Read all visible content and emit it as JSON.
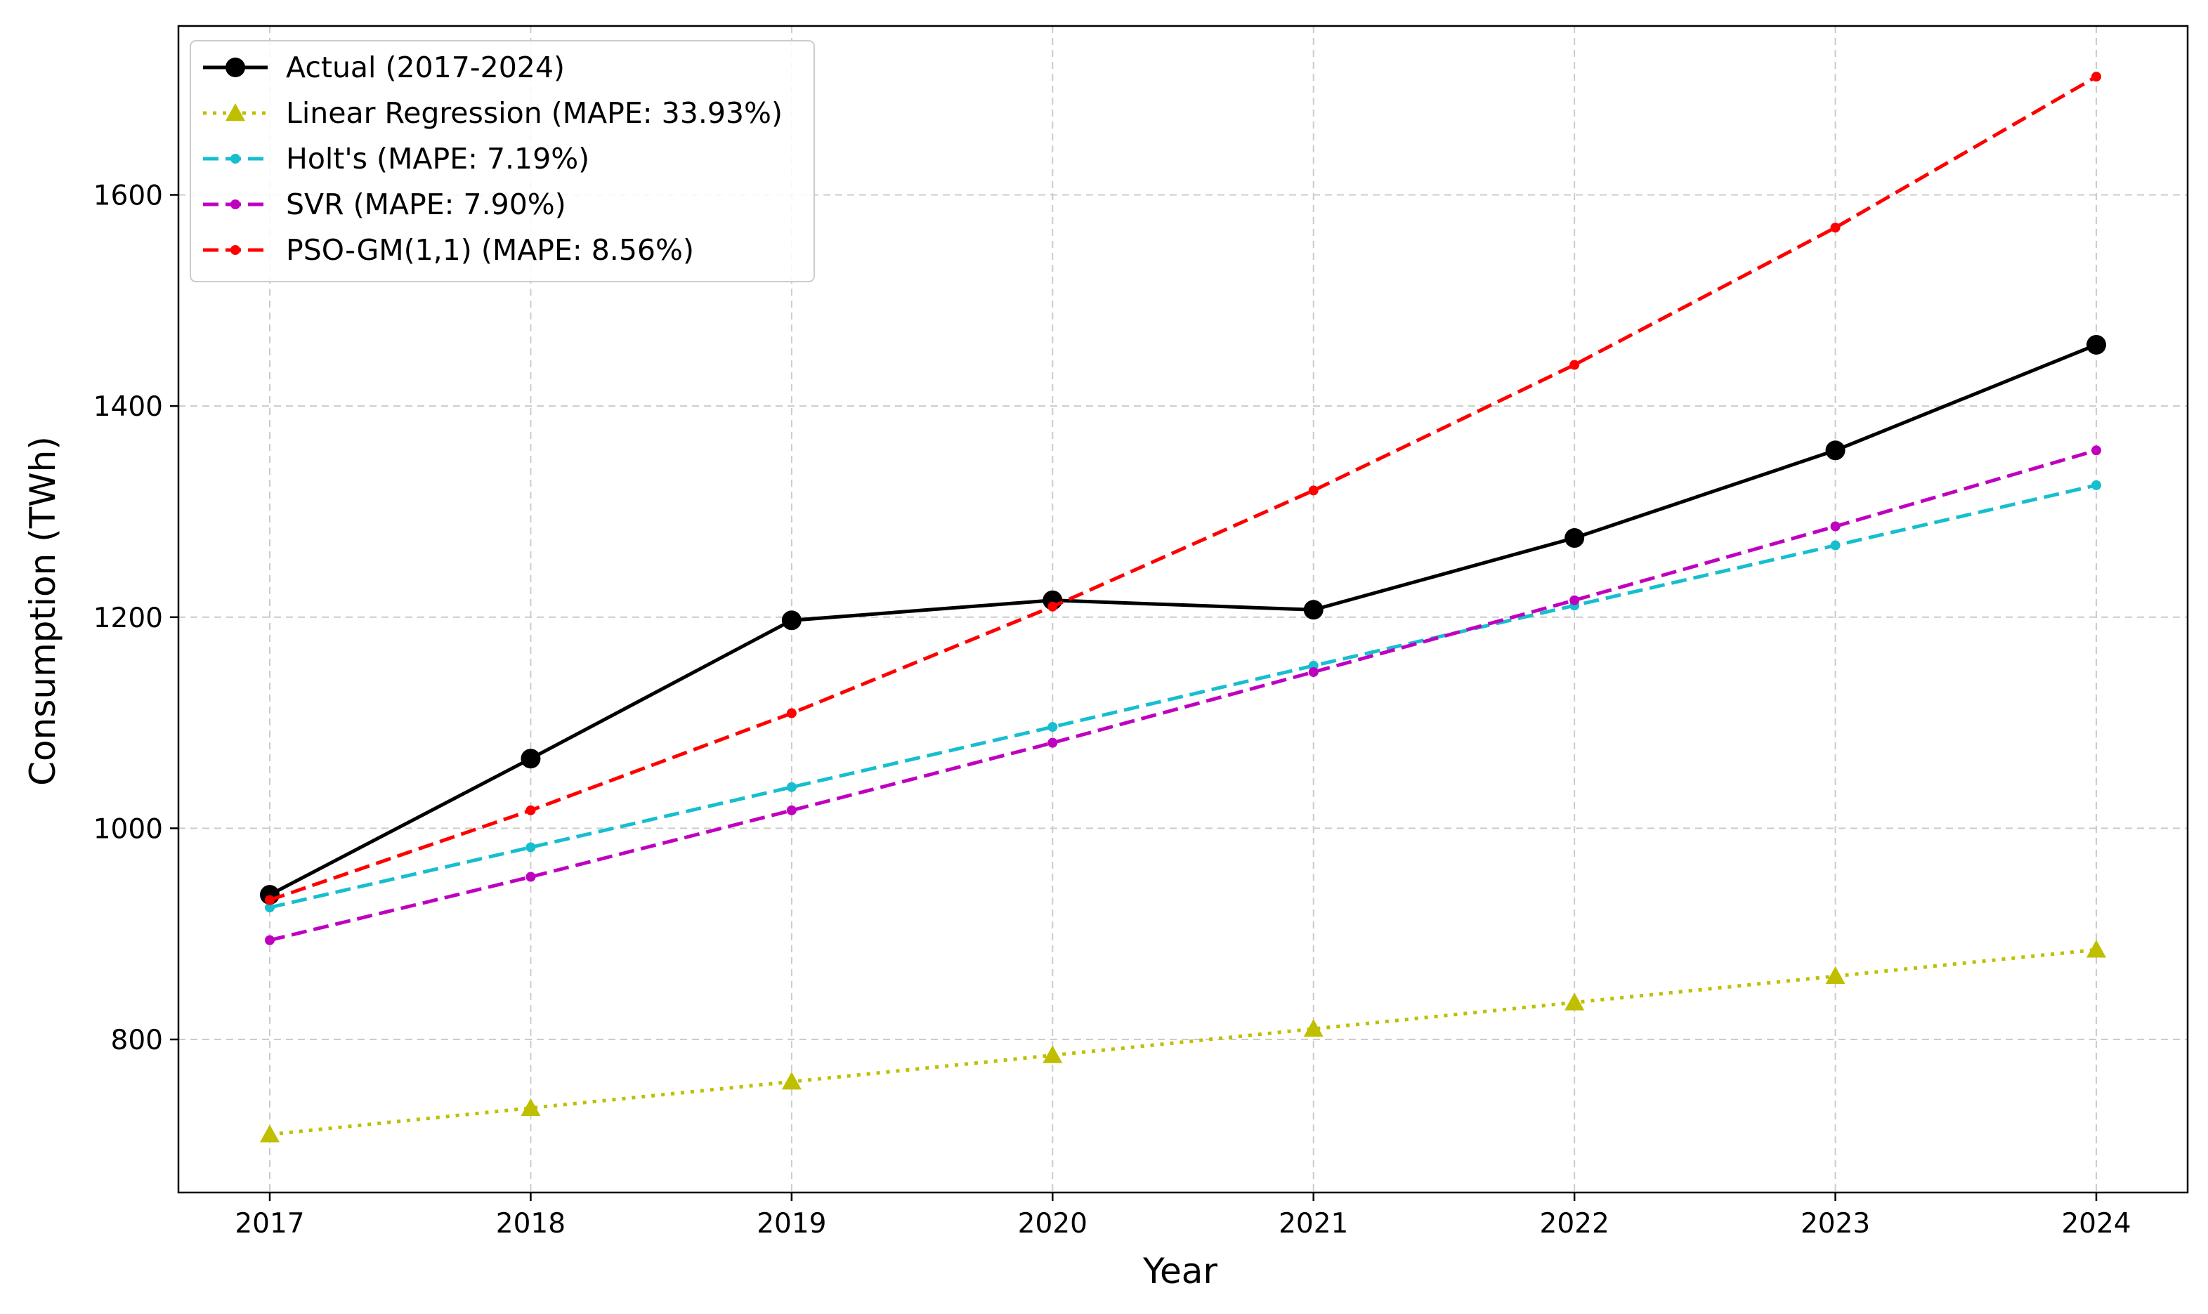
{
  "chart_data": {
    "type": "line",
    "title": "",
    "xlabel": "Year",
    "ylabel": "Consumption (TWh)",
    "x": [
      2017,
      2018,
      2019,
      2020,
      2021,
      2022,
      2023,
      2024
    ],
    "xlim": [
      2016.65,
      2024.35
    ],
    "ylim": [
      655,
      1760
    ],
    "yticks": [
      800,
      1000,
      1200,
      1400,
      1600
    ],
    "grid": true,
    "legend_position": "top-left",
    "series": [
      {
        "name": "Actual (2017-2024)",
        "color": "#000000",
        "dash": "solid",
        "marker": "circle",
        "values": [
          937,
          1066,
          1197,
          1216,
          1207,
          1275,
          1358,
          1458
        ]
      },
      {
        "name": "Linear Regression (MAPE: 33.93%)",
        "color": "#bfbf00",
        "dash": "dotted",
        "marker": "triangle",
        "values": [
          710,
          735,
          760,
          785,
          810,
          835,
          860,
          885
        ]
      },
      {
        "name": "Holt's (MAPE: 7.19%)",
        "color": "#17becf",
        "dash": "dashed",
        "marker": "dot",
        "values": [
          925,
          982,
          1039,
          1096,
          1154,
          1211,
          1268,
          1325
        ]
      },
      {
        "name": "SVR (MAPE: 7.90%)",
        "color": "#bf00bf",
        "dash": "dashed",
        "marker": "dot",
        "values": [
          894,
          954,
          1017,
          1081,
          1148,
          1216,
          1286,
          1358
        ]
      },
      {
        "name": "PSO-GM(1,1) (MAPE: 8.56%)",
        "color": "#ff0000",
        "dash": "dashed",
        "marker": "dot",
        "values": [
          932,
          1017,
          1109,
          1210,
          1320,
          1439,
          1569,
          1712
        ]
      }
    ]
  }
}
